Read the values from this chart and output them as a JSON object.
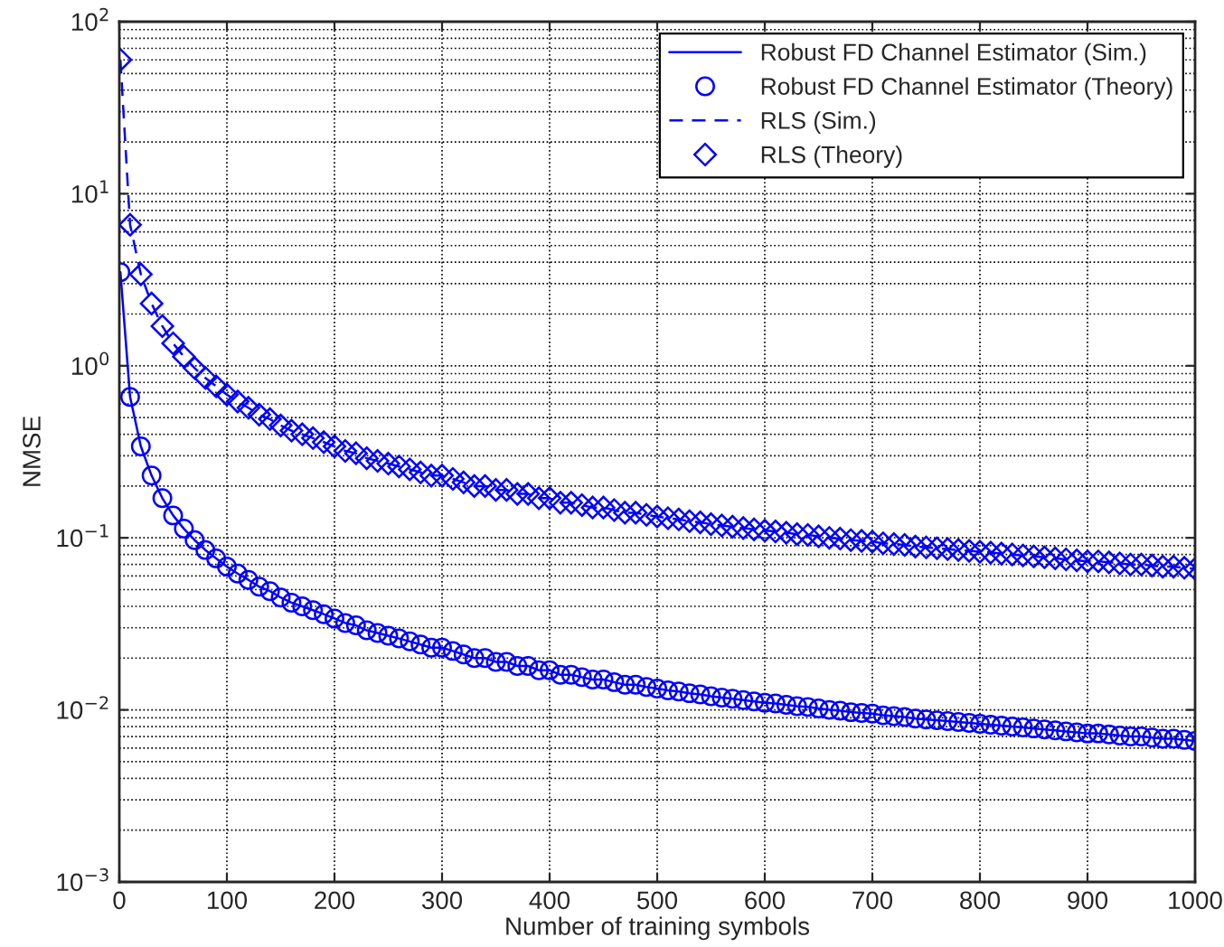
{
  "chart_data": {
    "type": "line",
    "xlabel": "Number of training symbols",
    "ylabel": "NMSE",
    "x": [
      1,
      10,
      20,
      30,
      40,
      50,
      60,
      70,
      80,
      90,
      100,
      110,
      120,
      130,
      140,
      150,
      160,
      170,
      180,
      190,
      200,
      210,
      220,
      230,
      240,
      250,
      260,
      270,
      280,
      290,
      300,
      310,
      320,
      330,
      340,
      350,
      360,
      370,
      380,
      390,
      400,
      410,
      420,
      430,
      440,
      450,
      460,
      470,
      480,
      490,
      500,
      510,
      520,
      530,
      540,
      550,
      560,
      570,
      580,
      590,
      600,
      610,
      620,
      630,
      640,
      650,
      660,
      670,
      680,
      690,
      700,
      710,
      720,
      730,
      740,
      750,
      760,
      770,
      780,
      790,
      800,
      810,
      820,
      830,
      840,
      850,
      860,
      870,
      880,
      890,
      900,
      910,
      920,
      930,
      940,
      950,
      960,
      970,
      980,
      990,
      1000
    ],
    "series": [
      {
        "name": "Robust FD Channel Estimator (Sim.)",
        "color": "#0000ff",
        "line_style": "solid",
        "marker": "none",
        "values": [
          3.5,
          0.66,
          0.34,
          0.23,
          0.17,
          0.135,
          0.113,
          0.097,
          0.085,
          0.076,
          0.068,
          0.062,
          0.057,
          0.052,
          0.049,
          0.045,
          0.042,
          0.04,
          0.038,
          0.036,
          0.034,
          0.032,
          0.031,
          0.029,
          0.028,
          0.027,
          0.026,
          0.025,
          0.024,
          0.023,
          0.023,
          0.022,
          0.021,
          0.02,
          0.02,
          0.019,
          0.019,
          0.018,
          0.018,
          0.017,
          0.017,
          0.016,
          0.016,
          0.0155,
          0.015,
          0.015,
          0.0145,
          0.014,
          0.014,
          0.0136,
          0.0133,
          0.013,
          0.0128,
          0.0125,
          0.0123,
          0.012,
          0.0118,
          0.0116,
          0.0114,
          0.0112,
          0.011,
          0.0109,
          0.0107,
          0.0105,
          0.0104,
          0.0102,
          0.01,
          0.0099,
          0.0097,
          0.0096,
          0.0095,
          0.0093,
          0.0092,
          0.0091,
          0.0089,
          0.0088,
          0.0087,
          0.0086,
          0.0085,
          0.0084,
          0.0083,
          0.0082,
          0.0081,
          0.008,
          0.0079,
          0.0078,
          0.0077,
          0.0076,
          0.0075,
          0.0074,
          0.0073,
          0.0073,
          0.0072,
          0.0071,
          0.007,
          0.007,
          0.0069,
          0.0068,
          0.0068,
          0.0067,
          0.0066
        ]
      },
      {
        "name": "Robust FD Channel Estimator (Theory)",
        "type": "scatter",
        "color": "#0000ff",
        "marker": "circle",
        "values": [
          3.5,
          0.66,
          0.34,
          0.23,
          0.17,
          0.135,
          0.113,
          0.097,
          0.085,
          0.076,
          0.068,
          0.062,
          0.057,
          0.052,
          0.049,
          0.045,
          0.042,
          0.04,
          0.038,
          0.036,
          0.034,
          0.032,
          0.031,
          0.029,
          0.028,
          0.027,
          0.026,
          0.025,
          0.024,
          0.023,
          0.023,
          0.022,
          0.021,
          0.02,
          0.02,
          0.019,
          0.019,
          0.018,
          0.018,
          0.017,
          0.017,
          0.016,
          0.016,
          0.0155,
          0.015,
          0.015,
          0.0145,
          0.014,
          0.014,
          0.0136,
          0.0133,
          0.013,
          0.0128,
          0.0125,
          0.0123,
          0.012,
          0.0118,
          0.0116,
          0.0114,
          0.0112,
          0.011,
          0.0109,
          0.0107,
          0.0105,
          0.0104,
          0.0102,
          0.01,
          0.0099,
          0.0097,
          0.0096,
          0.0095,
          0.0093,
          0.0092,
          0.0091,
          0.0089,
          0.0088,
          0.0087,
          0.0086,
          0.0085,
          0.0084,
          0.0083,
          0.0082,
          0.0081,
          0.008,
          0.0079,
          0.0078,
          0.0077,
          0.0076,
          0.0075,
          0.0074,
          0.0073,
          0.0073,
          0.0072,
          0.0071,
          0.007,
          0.007,
          0.0069,
          0.0068,
          0.0068,
          0.0067,
          0.0066
        ]
      },
      {
        "name": "RLS (Sim.)",
        "color": "#0000ff",
        "line_style": "dashed",
        "marker": "none",
        "values": [
          60,
          6.6,
          3.4,
          2.3,
          1.7,
          1.35,
          1.13,
          0.97,
          0.85,
          0.76,
          0.68,
          0.62,
          0.57,
          0.52,
          0.49,
          0.45,
          0.42,
          0.4,
          0.38,
          0.36,
          0.34,
          0.32,
          0.31,
          0.29,
          0.28,
          0.27,
          0.26,
          0.25,
          0.24,
          0.23,
          0.23,
          0.22,
          0.21,
          0.2,
          0.2,
          0.19,
          0.19,
          0.18,
          0.18,
          0.17,
          0.17,
          0.16,
          0.16,
          0.155,
          0.15,
          0.15,
          0.145,
          0.14,
          0.14,
          0.136,
          0.133,
          0.13,
          0.128,
          0.125,
          0.123,
          0.12,
          0.118,
          0.116,
          0.114,
          0.112,
          0.11,
          0.109,
          0.107,
          0.105,
          0.104,
          0.102,
          0.1,
          0.099,
          0.097,
          0.096,
          0.095,
          0.093,
          0.092,
          0.091,
          0.089,
          0.088,
          0.087,
          0.086,
          0.085,
          0.084,
          0.083,
          0.082,
          0.081,
          0.08,
          0.079,
          0.078,
          0.077,
          0.076,
          0.075,
          0.074,
          0.073,
          0.073,
          0.072,
          0.071,
          0.07,
          0.07,
          0.069,
          0.068,
          0.068,
          0.067,
          0.066
        ]
      },
      {
        "name": "RLS (Theory)",
        "type": "scatter",
        "color": "#0000ff",
        "marker": "diamond",
        "values": [
          60,
          6.6,
          3.4,
          2.3,
          1.7,
          1.35,
          1.13,
          0.97,
          0.85,
          0.76,
          0.68,
          0.62,
          0.57,
          0.52,
          0.49,
          0.45,
          0.42,
          0.4,
          0.38,
          0.36,
          0.34,
          0.32,
          0.31,
          0.29,
          0.28,
          0.27,
          0.26,
          0.25,
          0.24,
          0.23,
          0.23,
          0.22,
          0.21,
          0.2,
          0.2,
          0.19,
          0.19,
          0.18,
          0.18,
          0.17,
          0.17,
          0.16,
          0.16,
          0.155,
          0.15,
          0.15,
          0.145,
          0.14,
          0.14,
          0.136,
          0.133,
          0.13,
          0.128,
          0.125,
          0.123,
          0.12,
          0.118,
          0.116,
          0.114,
          0.112,
          0.11,
          0.109,
          0.107,
          0.105,
          0.104,
          0.102,
          0.1,
          0.099,
          0.097,
          0.096,
          0.095,
          0.093,
          0.092,
          0.091,
          0.089,
          0.088,
          0.087,
          0.086,
          0.085,
          0.084,
          0.083,
          0.082,
          0.081,
          0.08,
          0.079,
          0.078,
          0.077,
          0.076,
          0.075,
          0.074,
          0.073,
          0.073,
          0.072,
          0.071,
          0.07,
          0.07,
          0.069,
          0.068,
          0.068,
          0.067,
          0.066
        ]
      }
    ],
    "log": "y",
    "xlim": [
      0,
      1000
    ],
    "xticks": [
      0,
      100,
      200,
      300,
      400,
      500,
      600,
      700,
      800,
      900,
      1000
    ],
    "ylim": [
      0.001,
      100
    ],
    "yticks": [
      {
        "value": 0.001,
        "label": "10$^{−3}$"
      },
      {
        "value": 0.01,
        "label": "10$^{−2}$"
      },
      {
        "value": 0.1,
        "label": "10$^{−1}$"
      },
      {
        "value": 1,
        "label": "10$^{0}$"
      },
      {
        "value": 10,
        "label": "10$^{1}$"
      },
      {
        "value": 100,
        "label": "10$^{2}$"
      }
    ],
    "grid": true,
    "legend": "top right"
  }
}
